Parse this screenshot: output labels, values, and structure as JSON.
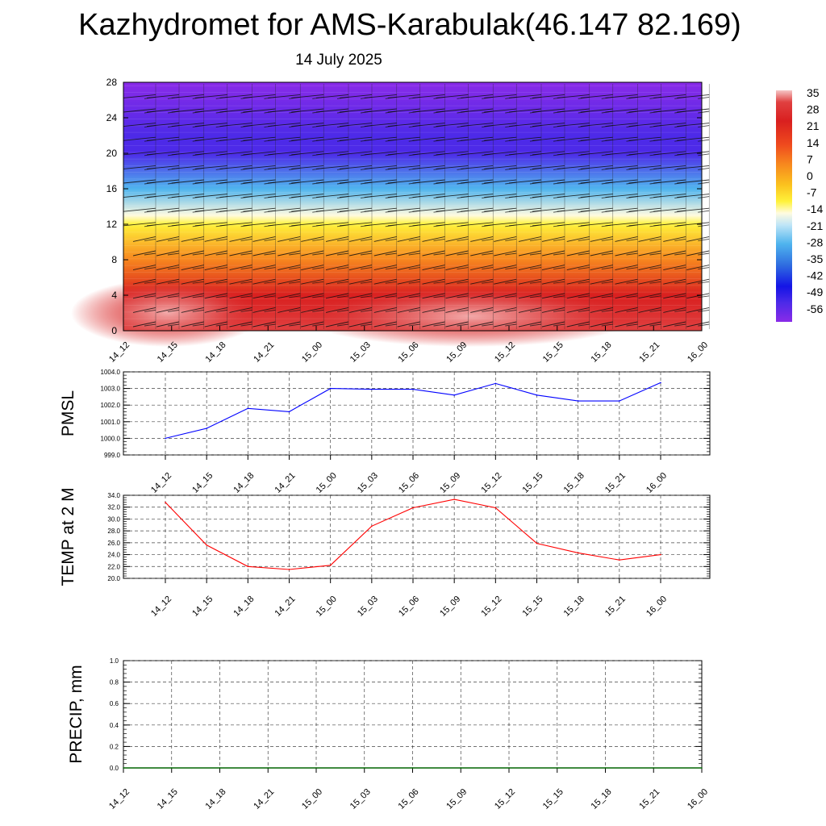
{
  "header": {
    "title": "Kazhydromet for AMS-Karabulak(46.147 82.169)",
    "subtitle": "14 July 2025"
  },
  "chart_data": [
    {
      "type": "heatmap",
      "name": "temperature-cross-section",
      "x_categories": [
        "14_12",
        "14_15",
        "14_18",
        "14_21",
        "15_00",
        "15_03",
        "15_06",
        "15_09",
        "15_12",
        "15_15",
        "15_18",
        "15_21",
        "16_00"
      ],
      "yticks": [
        "0",
        "4",
        "8",
        "12",
        "16",
        "20",
        "24",
        "28"
      ],
      "ylim": [
        0,
        28
      ],
      "colorbar": {
        "labels": [
          "35",
          "28",
          "21",
          "14",
          "7",
          "0",
          "-7",
          "-14",
          "-21",
          "-28",
          "-35",
          "-42",
          "-49",
          "-56"
        ],
        "stops": [
          {
            "v": 38,
            "c": "#f5c6c6"
          },
          {
            "v": 33,
            "c": "#e04040"
          },
          {
            "v": 25,
            "c": "#d91f1f"
          },
          {
            "v": 15,
            "c": "#ef4a1e"
          },
          {
            "v": 7,
            "c": "#f7861e"
          },
          {
            "v": -2,
            "c": "#fbc21e"
          },
          {
            "v": -9,
            "c": "#fff23a"
          },
          {
            "v": -14,
            "c": "#fffbe0"
          },
          {
            "v": -19,
            "c": "#bfe5f7"
          },
          {
            "v": -27,
            "c": "#4fb4ee"
          },
          {
            "v": -36,
            "c": "#2f6de0"
          },
          {
            "v": -45,
            "c": "#1414e6"
          },
          {
            "v": -52,
            "c": "#4d2ae8"
          },
          {
            "v": -60,
            "c": "#8a2be8"
          }
        ]
      },
      "temperature_profile": [
        {
          "h": 0,
          "t": 30
        },
        {
          "h": 4,
          "t": 20
        },
        {
          "h": 8,
          "t": 5
        },
        {
          "h": 12,
          "t": -8
        },
        {
          "h": 13,
          "t": -14
        },
        {
          "h": 16,
          "t": -30
        },
        {
          "h": 20,
          "t": -50
        },
        {
          "h": 22,
          "t": -55
        },
        {
          "h": 28,
          "t": -60
        }
      ]
    },
    {
      "type": "line",
      "name": "pmsl",
      "ylabel": "PMSL",
      "categories": [
        "14_12",
        "14_15",
        "14_18",
        "14_21",
        "15_00",
        "15_03",
        "15_06",
        "15_09",
        "15_12",
        "15_15",
        "15_18",
        "15_21",
        "16_00"
      ],
      "yticks": [
        "999.0",
        "1000.0",
        "1001.0",
        "1002.0",
        "1003.0",
        "1004.0"
      ],
      "ylim": [
        999,
        1004
      ],
      "color": "#0000ff",
      "values": [
        1000.0,
        1000.6,
        1001.8,
        1001.6,
        1003.0,
        1002.95,
        1002.95,
        1002.6,
        1003.3,
        1002.6,
        1002.25,
        1002.25,
        1003.35
      ]
    },
    {
      "type": "line",
      "name": "temp-2m",
      "ylabel": "TEMP at 2 M",
      "categories": [
        "14_12",
        "14_15",
        "14_18",
        "14_21",
        "15_00",
        "15_03",
        "15_06",
        "15_09",
        "15_12",
        "15_15",
        "15_18",
        "15_21",
        "16_00"
      ],
      "yticks": [
        "20.0",
        "22.0",
        "24.0",
        "26.0",
        "28.0",
        "30.0",
        "32.0",
        "34.0"
      ],
      "ylim": [
        20,
        34
      ],
      "color": "#ff0000",
      "values": [
        32.8,
        25.6,
        22.0,
        21.5,
        22.2,
        28.8,
        31.9,
        33.3,
        31.9,
        25.9,
        24.3,
        23.1,
        24.0
      ]
    },
    {
      "type": "line",
      "name": "precip",
      "ylabel": "PRECIP, mm",
      "categories": [
        "14_12",
        "14_15",
        "14_18",
        "14_21",
        "15_00",
        "15_03",
        "15_06",
        "15_09",
        "15_12",
        "15_15",
        "15_18",
        "15_21",
        "16_00"
      ],
      "yticks": [
        "0.0",
        "0.2",
        "0.4",
        "0.6",
        "0.8",
        "1.0"
      ],
      "ylim": [
        0,
        1
      ],
      "color": "#006400",
      "values": [
        0,
        0,
        0,
        0,
        0,
        0,
        0,
        0,
        0,
        0,
        0,
        0,
        0
      ]
    }
  ]
}
